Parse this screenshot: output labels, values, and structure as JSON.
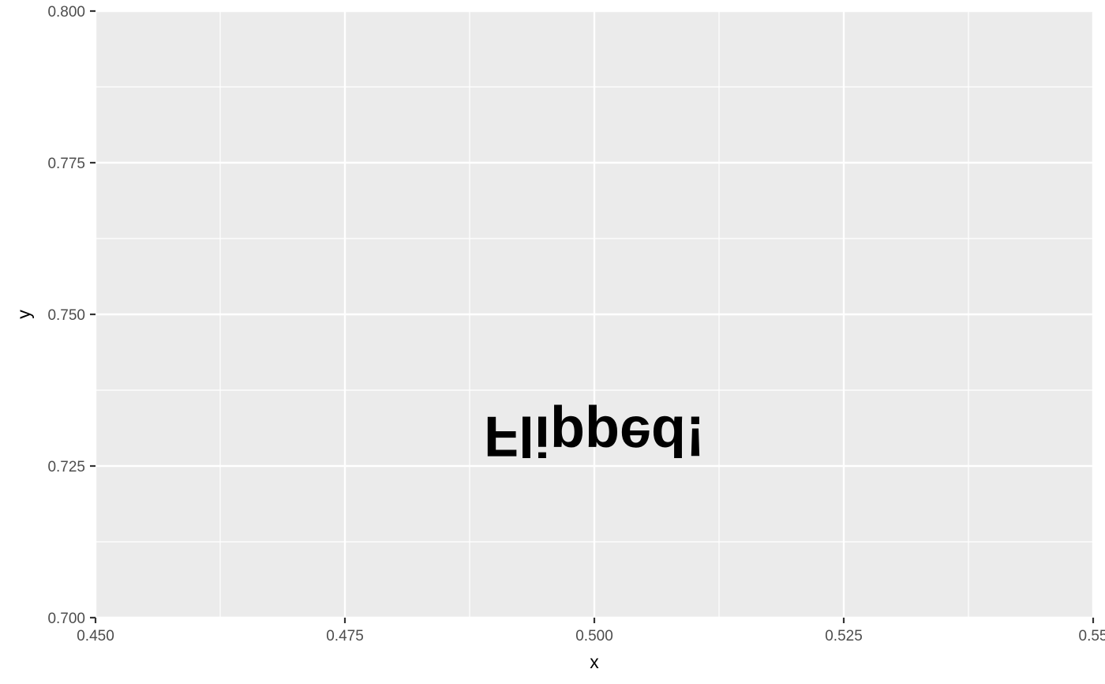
{
  "chart_data": {
    "type": "scatter",
    "xlabel": "x",
    "ylabel": "y",
    "xlim": [
      0.45,
      0.55
    ],
    "ylim": [
      0.7,
      0.8
    ],
    "x_ticks": [
      0.45,
      0.475,
      0.5,
      0.525,
      0.55
    ],
    "x_tick_labels": [
      "0.450",
      "0.475",
      "0.500",
      "0.525",
      "0.55"
    ],
    "y_ticks": [
      0.7,
      0.725,
      0.75,
      0.775,
      0.8
    ],
    "y_tick_labels": [
      "0.700",
      "0.725",
      "0.750",
      "0.775",
      "0.800"
    ],
    "x_minor": [
      0.4625,
      0.4875,
      0.5125,
      0.5375
    ],
    "y_minor": [
      0.7125,
      0.7375,
      0.7625,
      0.7875
    ],
    "grid": true,
    "annotations": [
      {
        "text": "Flipped!",
        "x": 0.5,
        "y": 0.73,
        "flipped": true
      }
    ],
    "colors": {
      "panel": "#ebebeb",
      "grid": "#ffffff",
      "text": "#000000",
      "tick_text": "#4d4d4d",
      "tick": "#333333"
    }
  }
}
